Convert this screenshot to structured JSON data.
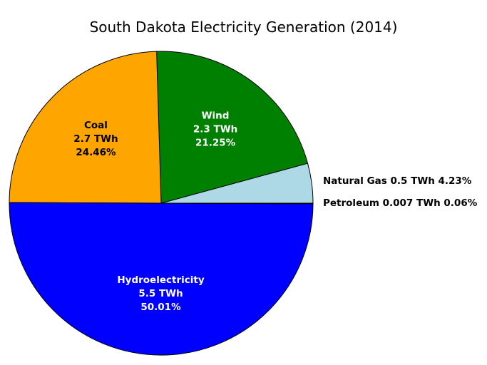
{
  "chart_data": {
    "type": "pie",
    "title": "South Dakota Electricity Generation (2014)",
    "slices": [
      {
        "name": "Natural Gas",
        "value_twh": "0.5 TWh",
        "percent": 4.23,
        "percent_label": "4.23%",
        "color": "#add8e6",
        "label_position": "outside",
        "text_color": "#000000"
      },
      {
        "name": "Wind",
        "value_twh": "2.3 TWh",
        "percent": 21.25,
        "percent_label": "21.25%",
        "color": "#008000",
        "label_position": "inside",
        "text_color": "#ffffff"
      },
      {
        "name": "Coal",
        "value_twh": "2.7 TWh",
        "percent": 24.46,
        "percent_label": "24.46%",
        "color": "#ffa500",
        "label_position": "inside",
        "text_color": "#000000"
      },
      {
        "name": "Hydroelectricity",
        "value_twh": "5.5 TWh",
        "percent": 50.01,
        "percent_label": "50.01%",
        "color": "#0000ff",
        "label_position": "inside",
        "text_color": "#ffffff"
      },
      {
        "name": "Petroleum",
        "value_twh": "0.007 TWh",
        "percent": 0.06,
        "percent_label": "0.06%",
        "color": "#ff0000",
        "label_position": "outside",
        "text_color": "#000000"
      }
    ],
    "start_angle_deg": 0,
    "direction": "counterclockwise",
    "legend": "none"
  }
}
